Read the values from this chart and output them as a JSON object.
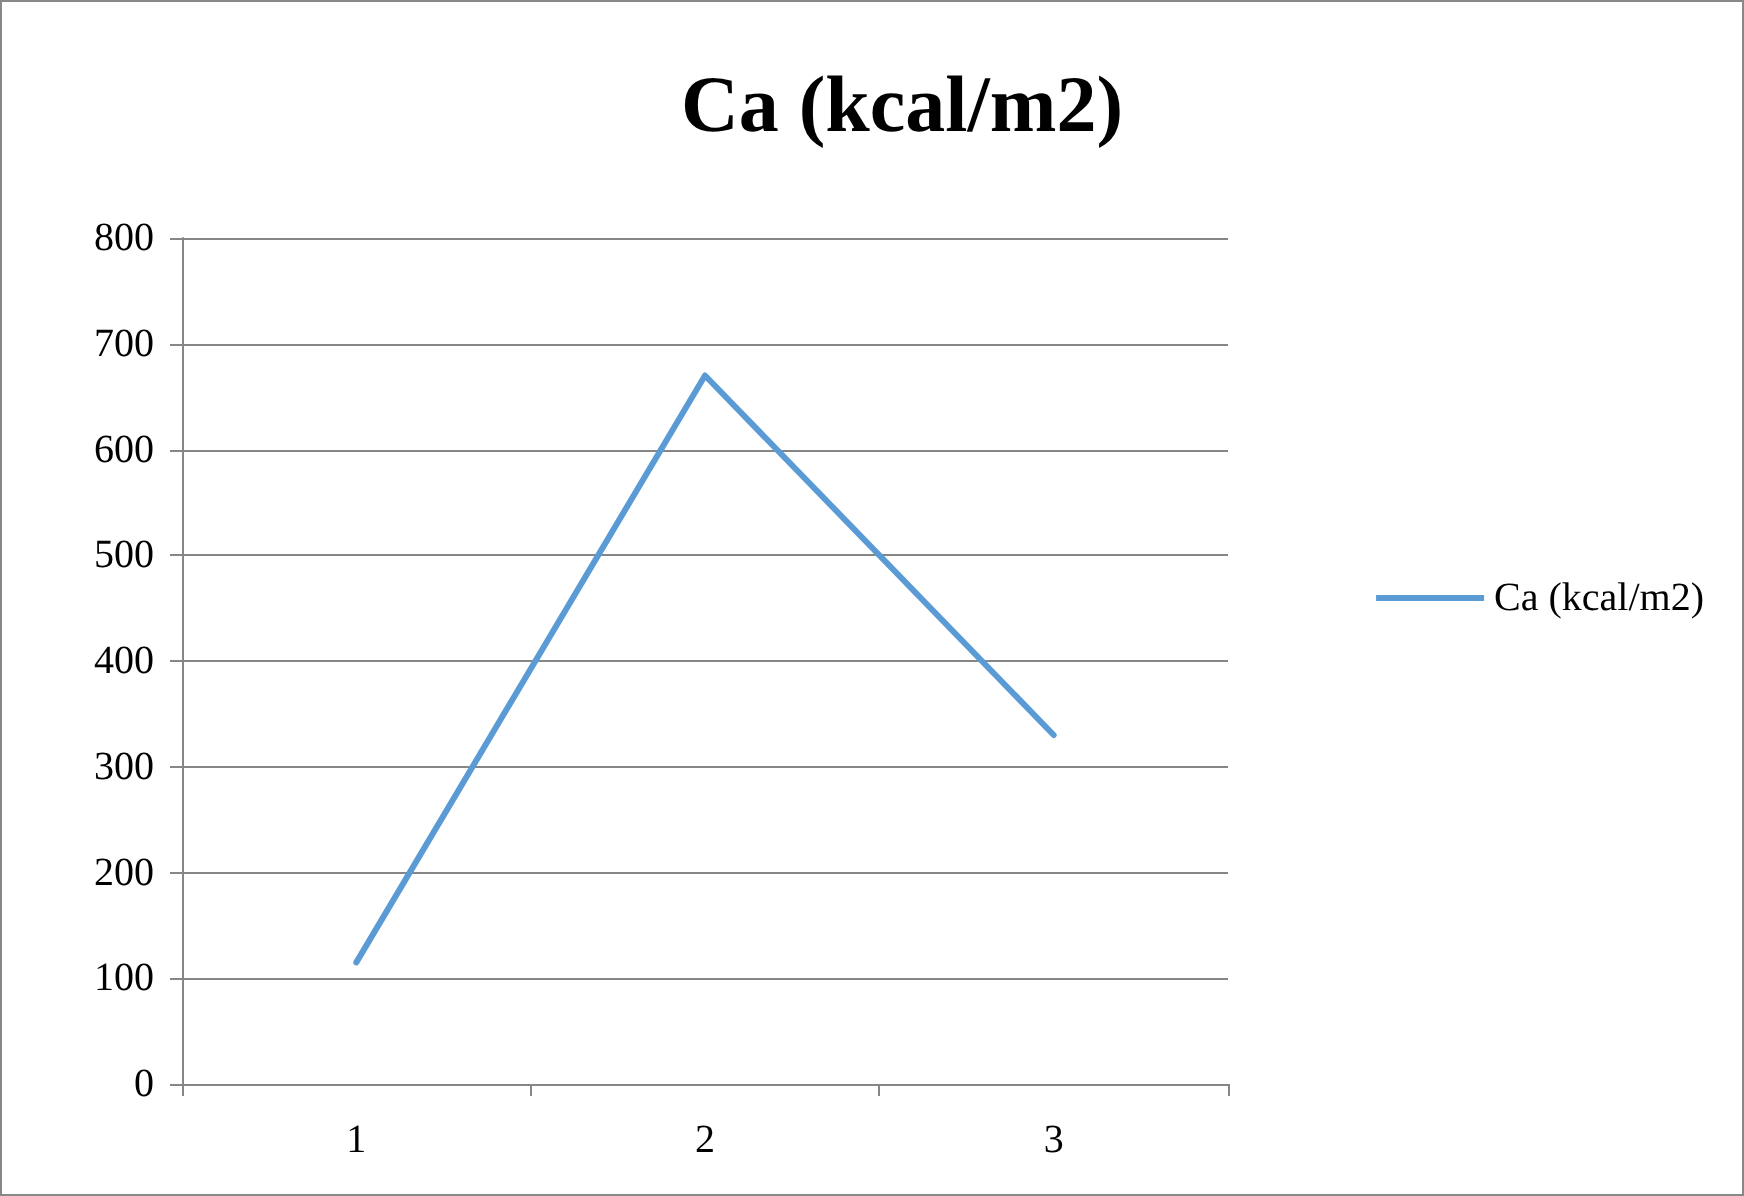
{
  "chart_data": {
    "type": "line",
    "title": "Ca (kcal/m2)",
    "categories": [
      "1",
      "2",
      "3"
    ],
    "series": [
      {
        "name": "Ca (kcal/m2)",
        "color": "#5b9bd5",
        "values": [
          115,
          670,
          330
        ]
      }
    ],
    "ylim": [
      0,
      800
    ],
    "yticks": [
      0,
      100,
      200,
      300,
      400,
      500,
      600,
      700,
      800
    ],
    "grid": "y",
    "legend": "right",
    "marker": "none"
  }
}
